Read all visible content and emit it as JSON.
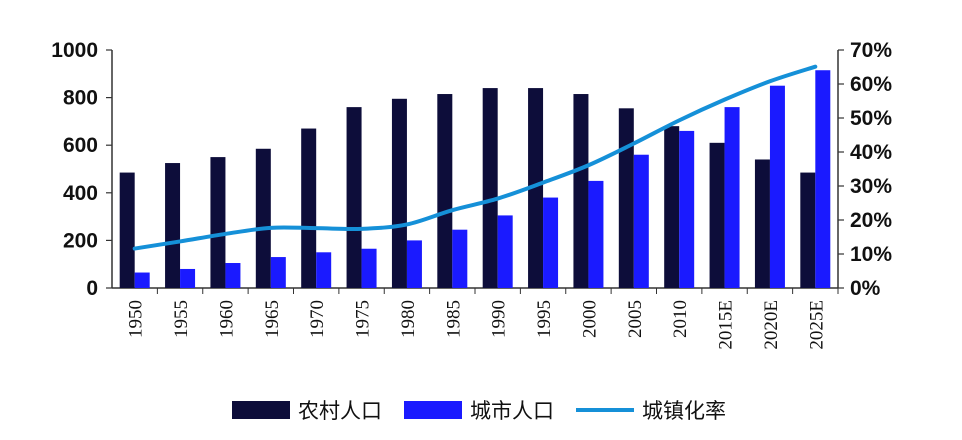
{
  "chart_data": {
    "type": "bar",
    "categories": [
      "1950",
      "1955",
      "1960",
      "1965",
      "1970",
      "1975",
      "1980",
      "1985",
      "1990",
      "1995",
      "2000",
      "2005",
      "2010",
      "2015E",
      "2020E",
      "2025E"
    ],
    "series": [
      {
        "name": "农村人口",
        "kind": "bar",
        "axis": "left",
        "color": "#0d0d3a",
        "values": [
          485,
          525,
          550,
          585,
          670,
          760,
          795,
          815,
          840,
          840,
          815,
          755,
          680,
          610,
          540,
          485
        ]
      },
      {
        "name": "城市人口",
        "kind": "bar",
        "axis": "left",
        "color": "#1a1aff",
        "values": [
          65,
          80,
          105,
          130,
          150,
          165,
          200,
          245,
          305,
          380,
          450,
          560,
          660,
          760,
          850,
          915
        ]
      },
      {
        "name": "城镇化率",
        "kind": "line",
        "axis": "right",
        "color": "#1590d8",
        "values": [
          0.116,
          0.137,
          0.159,
          0.177,
          0.176,
          0.174,
          0.187,
          0.229,
          0.263,
          0.31,
          0.361,
          0.425,
          0.493,
          0.554,
          0.608,
          0.651
        ]
      }
    ],
    "y_left": {
      "min": 0,
      "max": 1000,
      "ticks": [
        "0",
        "200",
        "400",
        "600",
        "800",
        "1000"
      ]
    },
    "y_right": {
      "min": 0,
      "max": 0.7,
      "ticks": [
        "0%",
        "10%",
        "20%",
        "30%",
        "40%",
        "50%",
        "60%",
        "70%"
      ]
    },
    "grid": false,
    "legend_position": "bottom"
  }
}
